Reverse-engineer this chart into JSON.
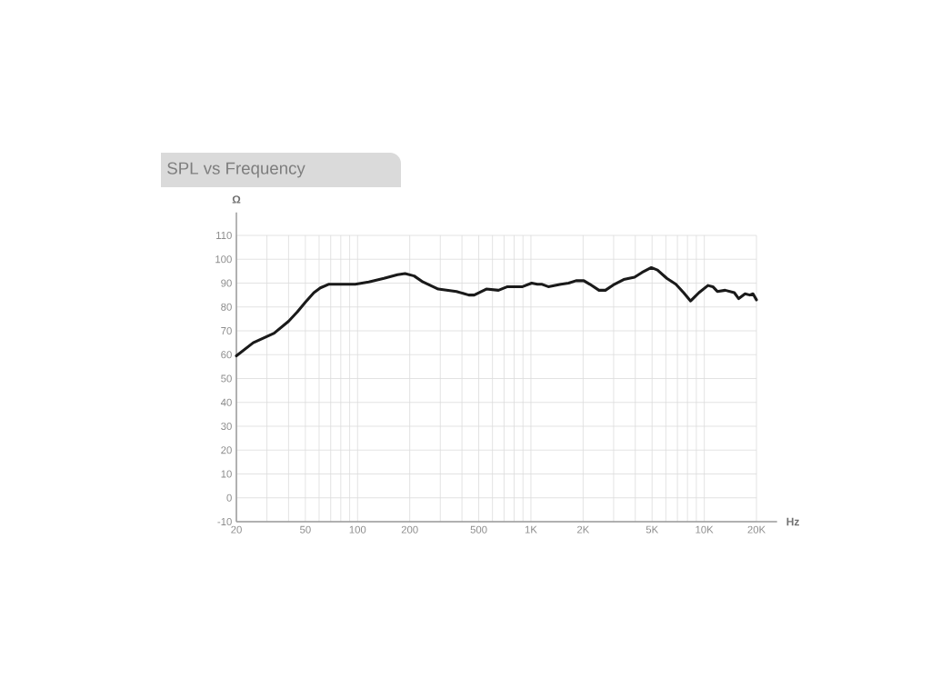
{
  "chart_data": {
    "type": "line",
    "title": "SPL vs Frequency",
    "xlabel": "Hz",
    "ylabel": "Ω",
    "log": "x",
    "grid": true,
    "xlim": [
      20,
      20000
    ],
    "ylim": [
      -10,
      110
    ],
    "xticks": [
      20,
      50,
      100,
      200,
      500,
      {
        "value": 1000,
        "label": "1K"
      },
      {
        "value": 2000,
        "label": "2K"
      },
      {
        "value": 5000,
        "label": "5K"
      },
      {
        "value": 10000,
        "label": "10K"
      },
      {
        "value": 20000,
        "label": "20K"
      }
    ],
    "yticks": [
      -10,
      0,
      10,
      20,
      30,
      40,
      50,
      60,
      70,
      80,
      90,
      100,
      110
    ],
    "x": [
      20,
      25,
      33,
      40,
      45,
      50,
      56,
      61,
      68,
      81,
      97,
      116,
      142,
      170,
      188,
      212,
      238,
      292,
      372,
      438,
      471,
      553,
      650,
      733,
      895,
      1010,
      1090,
      1160,
      1260,
      1490,
      1650,
      1820,
      2020,
      2190,
      2470,
      2690,
      3030,
      3430,
      3960,
      4380,
      4950,
      5370,
      6080,
      6860,
      7600,
      8340,
      9320,
      10500,
      11200,
      11900,
      13200,
      14900,
      15800,
      17200,
      18300,
      19100,
      20000
    ],
    "series": [
      {
        "color": "#1a1a1a",
        "values": [
          59.5,
          65,
          69,
          74,
          78,
          82,
          86,
          88,
          89.5,
          89.5,
          89.5,
          90.5,
          92,
          93.5,
          94,
          93,
          90.5,
          87.5,
          86.5,
          85,
          85,
          87.5,
          87,
          88.5,
          88.5,
          90,
          89.5,
          89.5,
          88.5,
          89.5,
          90,
          91,
          91,
          89.5,
          87,
          87,
          89.5,
          91.5,
          92.5,
          94.5,
          96.5,
          95.5,
          92,
          89.5,
          86,
          82.5,
          86,
          89,
          88.5,
          86.5,
          87,
          86,
          83.5,
          85.5,
          85,
          85.5,
          83
        ]
      }
    ]
  }
}
